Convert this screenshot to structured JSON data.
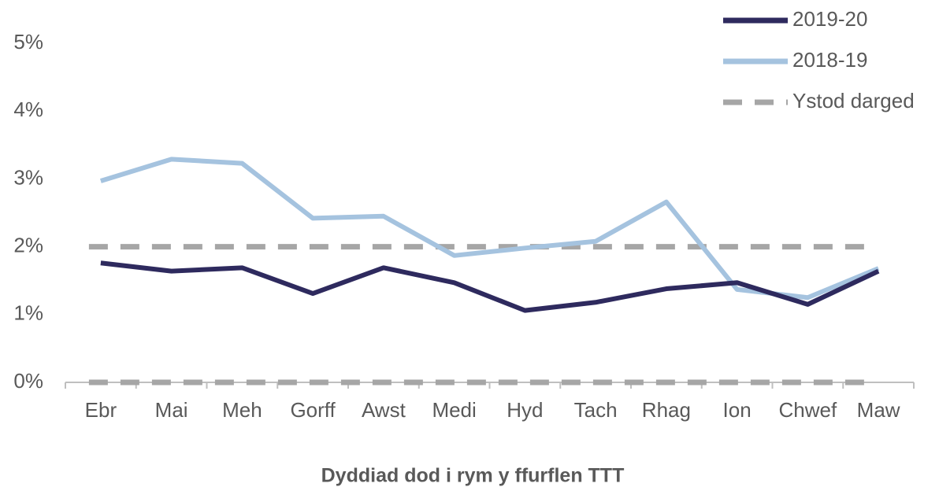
{
  "chart_data": {
    "type": "line",
    "categories": [
      "Ebr",
      "Mai",
      "Meh",
      "Gorff",
      "Awst",
      "Medi",
      "Hyd",
      "Tach",
      "Rhag",
      "Ion",
      "Chwef",
      "Maw"
    ],
    "series": [
      {
        "name": "2019-20",
        "color": "#2e2a5e",
        "values": [
          1.76,
          1.64,
          1.69,
          1.31,
          1.69,
          1.47,
          1.06,
          1.18,
          1.38,
          1.47,
          1.15,
          1.64
        ]
      },
      {
        "name": "2018-19",
        "color": "#a5c3df",
        "values": [
          2.97,
          3.29,
          3.23,
          2.42,
          2.45,
          1.87,
          1.98,
          2.08,
          2.66,
          1.37,
          1.25,
          1.68
        ]
      }
    ],
    "target_band": {
      "name": "Ystod darged",
      "color": "#a6a6a6",
      "lower": 0,
      "upper": 2
    },
    "xlabel": "Dyddiad dod i rym y ffurflen TTT",
    "ylim": [
      0,
      5
    ],
    "yticks": [
      {
        "value": 0,
        "label": "0%"
      },
      {
        "value": 1,
        "label": "1%"
      },
      {
        "value": 2,
        "label": "2%"
      },
      {
        "value": 3,
        "label": "3%"
      },
      {
        "value": 4,
        "label": "4%"
      },
      {
        "value": 5,
        "label": "5%"
      }
    ],
    "legend": "top-right"
  }
}
